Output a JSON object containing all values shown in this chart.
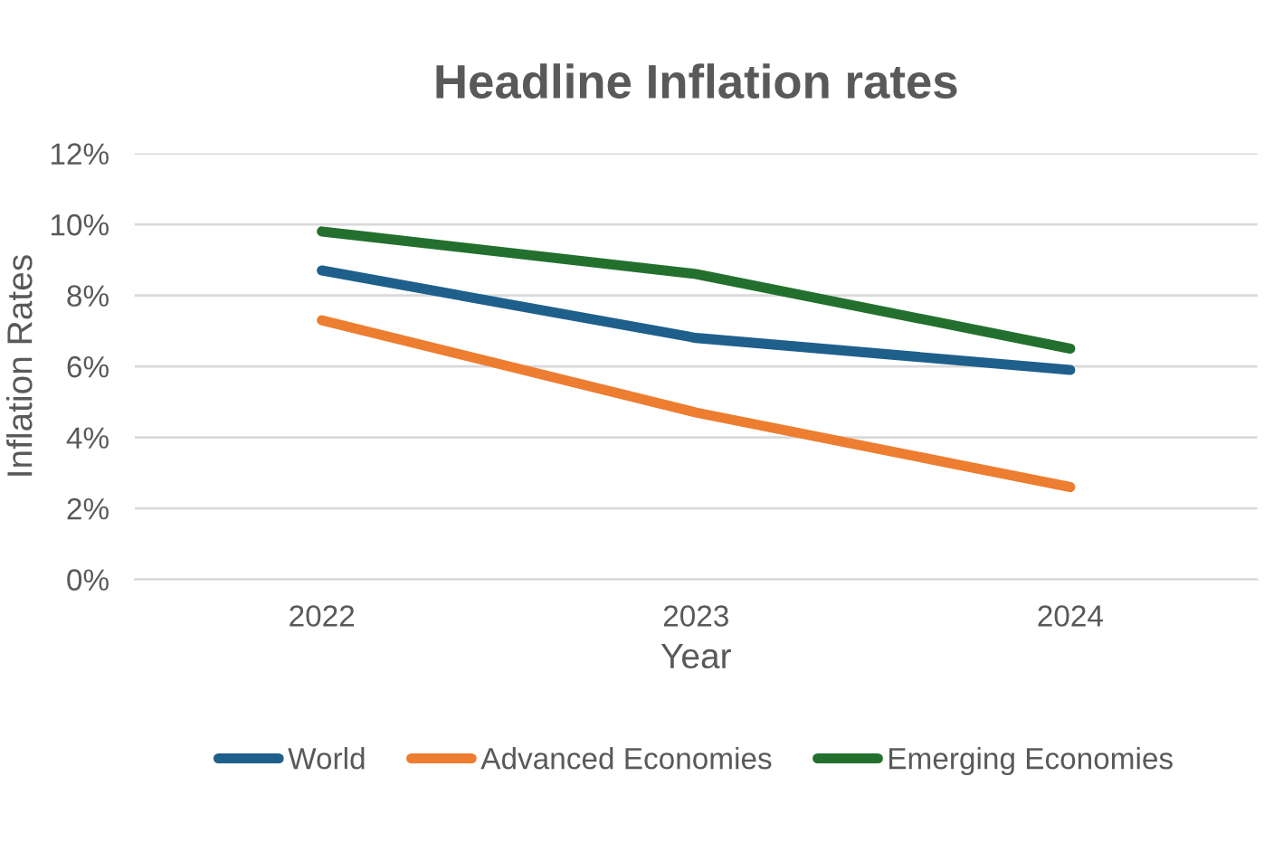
{
  "chart_data": {
    "type": "line",
    "title": "Headline Inflation rates",
    "xlabel": "Year",
    "ylabel": "Inflation Rates",
    "categories": [
      "2022",
      "2023",
      "2024"
    ],
    "series": [
      {
        "name": "World",
        "color": "#1f5f8b",
        "values": [
          8.7,
          6.8,
          5.9
        ]
      },
      {
        "name": "Advanced Economies",
        "color": "#ed7d31",
        "values": [
          7.3,
          4.7,
          2.6
        ]
      },
      {
        "name": "Emerging Economies",
        "color": "#23702e",
        "values": [
          9.8,
          8.6,
          6.5
        ]
      }
    ],
    "ylim": [
      0,
      12
    ],
    "yticks": [
      {
        "value": 0,
        "label": "0%"
      },
      {
        "value": 2,
        "label": "2%"
      },
      {
        "value": 4,
        "label": "4%"
      },
      {
        "value": 6,
        "label": "6%"
      },
      {
        "value": 8,
        "label": "8%"
      },
      {
        "value": 10,
        "label": "10%"
      },
      {
        "value": 12,
        "label": "12%"
      }
    ],
    "grid": "y",
    "legend": "bottom",
    "marker": "none",
    "line_style": "solid"
  }
}
